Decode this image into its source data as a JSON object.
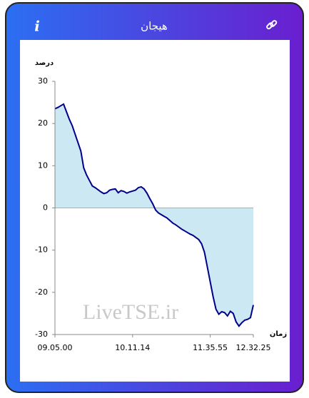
{
  "header": {
    "title": "هیجان",
    "info": "i"
  },
  "chart_data": {
    "type": "area",
    "y_label": "درصد",
    "x_label": "زمان",
    "watermark": "LiveTSE.ir",
    "categories": [
      "09.05.00",
      null,
      null,
      null,
      null,
      null,
      null,
      null,
      null,
      null,
      null,
      null,
      null,
      null,
      null,
      null,
      null,
      null,
      null,
      null,
      null,
      null,
      null,
      null,
      null,
      null,
      null,
      "10.11.14",
      null,
      null,
      null,
      null,
      null,
      null,
      null,
      null,
      null,
      null,
      null,
      null,
      null,
      null,
      null,
      null,
      null,
      null,
      null,
      null,
      null,
      null,
      null,
      null,
      null,
      null,
      "11.35.55",
      null,
      null,
      null,
      null,
      null,
      null,
      null,
      null,
      null,
      null,
      null,
      null,
      null,
      null,
      "12.32.25"
    ],
    "values": [
      23.5,
      23.8,
      24.2,
      24.6,
      22.8,
      21,
      19.5,
      17.5,
      15.5,
      13.5,
      9.5,
      7.8,
      6.5,
      5.2,
      4.8,
      4.3,
      3.8,
      3.4,
      3.6,
      4.2,
      4.4,
      4.5,
      3.6,
      4.1,
      3.9,
      3.5,
      3.8,
      4,
      4.2,
      4.8,
      5,
      4.5,
      3.5,
      2.2,
      1,
      -0.5,
      -1.2,
      -1.6,
      -2,
      -2.4,
      -3,
      -3.6,
      -4,
      -4.5,
      -5,
      -5.4,
      -5.8,
      -6.2,
      -6.5,
      -7,
      -7.5,
      -8.5,
      -10.5,
      -14,
      -17.5,
      -21,
      -24,
      -25.2,
      -24.6,
      -24.8,
      -25.6,
      -24.5,
      -25,
      -27,
      -28,
      -27.2,
      -26.6,
      -26.4,
      -26,
      -23
    ],
    "color": "#00008b",
    "fill": "#cce8f2",
    "ylim": [
      -30,
      30
    ],
    "yticks": [
      -30,
      -20,
      -10,
      0,
      10,
      20,
      30
    ]
  }
}
